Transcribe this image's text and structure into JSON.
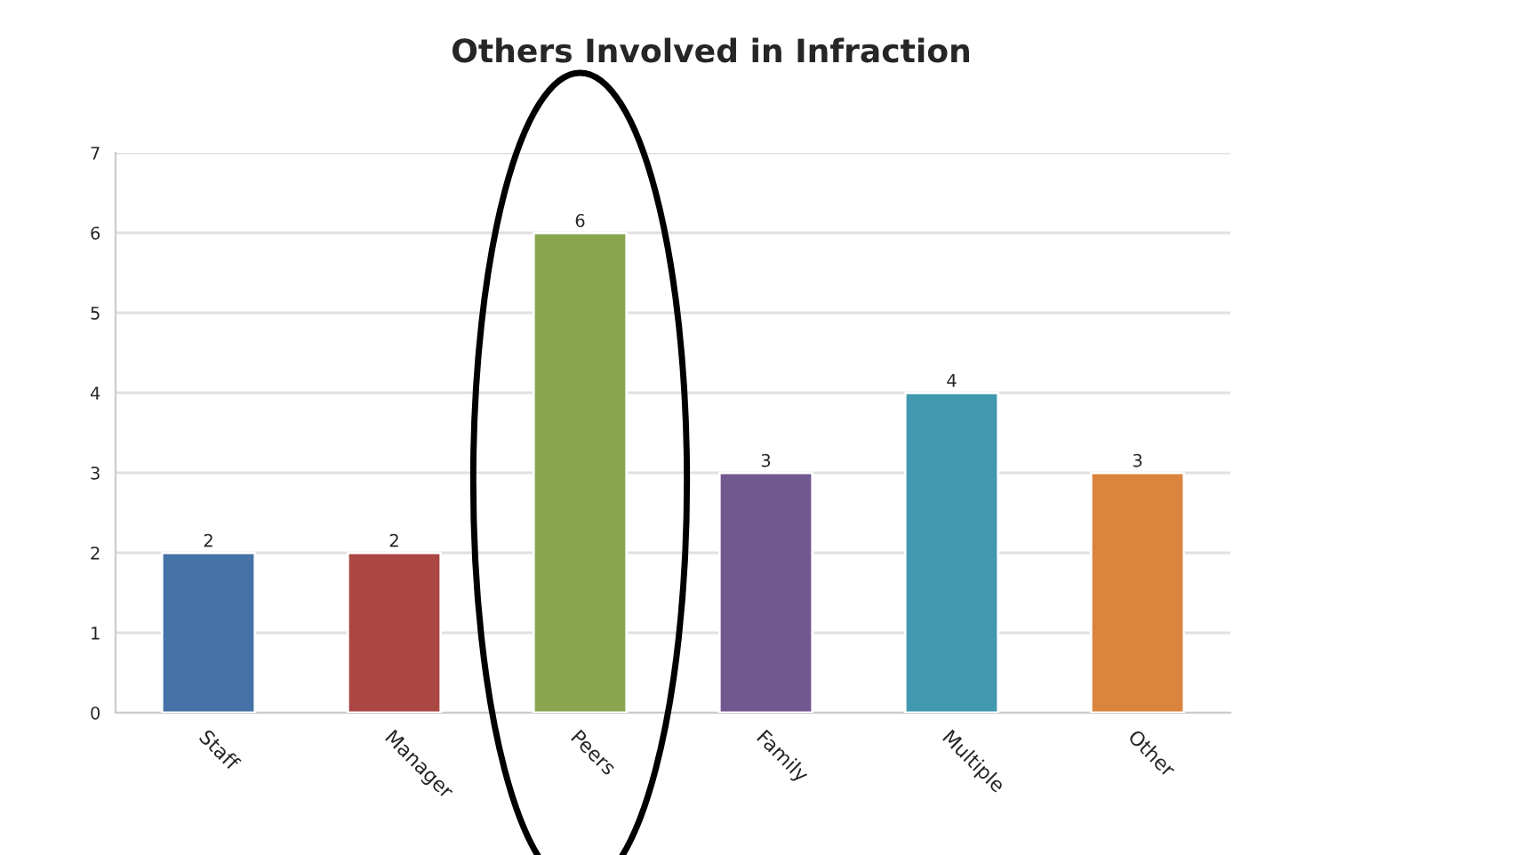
{
  "chart_data": {
    "type": "bar",
    "title": "Others Involved in Infraction",
    "categories": [
      "Staff",
      "Manager",
      "Peers",
      "Family",
      "Multiple",
      "Other"
    ],
    "values": [
      2,
      2,
      6,
      3,
      4,
      3
    ],
    "colors": [
      "#4572a7",
      "#aa4643",
      "#89a54e",
      "#71588f",
      "#4198af",
      "#db843d"
    ],
    "ylim": [
      0,
      7
    ],
    "yticks": [
      0,
      1,
      2,
      3,
      4,
      5,
      6,
      7
    ],
    "grid": "y",
    "data_labels": true
  }
}
